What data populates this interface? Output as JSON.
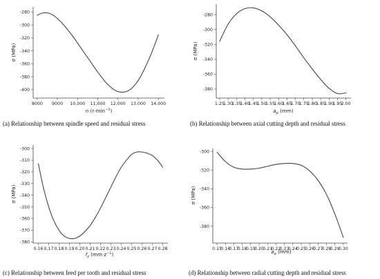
{
  "chart_data": [
    {
      "type": "line",
      "caption": "(a) Relationship between spindle speed  and residual stress",
      "xlabel_base": "n",
      "xlabel_unit": " (r·min",
      "xlabel_sup": "−1",
      "xlabel_close": ")",
      "ylabel": "σ (MPa)",
      "xlim": [
        7800,
        14300
      ],
      "ylim": [
        -413,
        -272
      ],
      "xticks": [
        8000,
        9000,
        10000,
        11000,
        12000,
        13000,
        14000
      ],
      "xtick_labels": [
        "8000",
        "9000",
        "10,000",
        "11,000",
        "12,000",
        "13,000",
        "14,000"
      ],
      "yticks": [
        -400,
        -380,
        -360,
        -340,
        -320,
        -300,
        -280
      ],
      "ytick_labels": [
        "-400",
        "-380",
        "-360",
        "-340",
        "-320",
        "-300",
        "-280"
      ],
      "series": [
        {
          "x": [
            8000,
            8200,
            8400,
            8600,
            8800,
            9000,
            9200,
            9400,
            9600,
            9800,
            10000,
            10200,
            10400,
            10600,
            10800,
            11000,
            11200,
            11400,
            11600,
            11800,
            12000,
            12200,
            12400,
            12600,
            12800,
            13000,
            13200,
            13400,
            13600,
            13800,
            14000
          ],
          "y": [
            -285,
            -282,
            -281,
            -282,
            -285,
            -290,
            -296,
            -303,
            -311,
            -319,
            -328,
            -337,
            -346,
            -355,
            -364,
            -373,
            -381,
            -389,
            -395,
            -400,
            -403,
            -404,
            -403,
            -400,
            -394,
            -386,
            -375,
            -362,
            -348,
            -332,
            -315
          ]
        }
      ]
    },
    {
      "type": "line",
      "caption": "(b) Relationship between axial cutting depth and residual stress",
      "xlabel_base": "a",
      "xlabel_sub": "p",
      "xlabel_unit": " (mm)",
      "ylabel": "σ (MPa)",
      "xlim": [
        1.23,
        2.03
      ],
      "ylim": [
        -392,
        -266
      ],
      "xticks": [
        1.25,
        1.3,
        1.35,
        1.4,
        1.45,
        1.5,
        1.55,
        1.6,
        1.65,
        1.7,
        1.75,
        1.8,
        1.85,
        1.9,
        1.95,
        2.0
      ],
      "xtick_labels": [
        "1.25",
        "1.30",
        "1.35",
        "1.40",
        "1.45",
        "1.50",
        "1.55",
        "1.60",
        "1.65",
        "1.70",
        "1.75",
        "1.80",
        "1.85",
        "1.90",
        "1.95",
        "2.00"
      ],
      "yticks": [
        -380,
        -360,
        -340,
        -320,
        -300,
        -280
      ],
      "ytick_labels": [
        "-380",
        "-360",
        "-340",
        "-320",
        "-300",
        "-280"
      ],
      "series": [
        {
          "x": [
            1.25,
            1.3,
            1.35,
            1.4,
            1.45,
            1.5,
            1.55,
            1.6,
            1.65,
            1.7,
            1.75,
            1.8,
            1.85,
            1.9,
            1.95,
            2.0
          ],
          "y": [
            -316,
            -293,
            -279,
            -272,
            -271,
            -275,
            -283,
            -294,
            -307,
            -322,
            -338,
            -353,
            -367,
            -379,
            -386,
            -385
          ]
        }
      ]
    },
    {
      "type": "line",
      "caption": "(c) Relationship between feed per tooth  and residual stress",
      "xlabel_base": "f",
      "xlabel_sub": "z",
      "xlabel_unit": " (mm·z",
      "xlabel_sup": "−1",
      "xlabel_close": ")",
      "ylabel": "σ (MPa)",
      "xlim": [
        0.155,
        0.285
      ],
      "ylim": [
        -381,
        -297
      ],
      "xticks": [
        0.16,
        0.17,
        0.18,
        0.19,
        0.2,
        0.21,
        0.22,
        0.23,
        0.24,
        0.25,
        0.26,
        0.27,
        0.28
      ],
      "xtick_labels": [
        "0.16",
        "0.17",
        "0.18",
        "0.19",
        "0.20",
        "0.21",
        "0.22",
        "0.23",
        "0.24",
        "0.25",
        "0.26",
        "0.27",
        "0.28"
      ],
      "yticks": [
        -380,
        -370,
        -360,
        -350,
        -340,
        -330,
        -320,
        -310,
        -300
      ],
      "ytick_labels": [
        "-380",
        "-370",
        "-360",
        "-350",
        "-340",
        "-330",
        "-320",
        "-310",
        "-300"
      ],
      "series": [
        {
          "x": [
            0.16,
            0.165,
            0.17,
            0.175,
            0.18,
            0.185,
            0.19,
            0.195,
            0.2,
            0.205,
            0.21,
            0.215,
            0.22,
            0.225,
            0.23,
            0.235,
            0.24,
            0.245,
            0.25,
            0.255,
            0.26,
            0.265,
            0.27,
            0.275,
            0.28
          ],
          "y": [
            -313,
            -334,
            -350,
            -362,
            -370,
            -375,
            -377,
            -377,
            -375,
            -371,
            -366,
            -359,
            -351,
            -342,
            -333,
            -324,
            -316,
            -310,
            -305,
            -303,
            -303,
            -304,
            -306,
            -310,
            -316
          ]
        }
      ]
    },
    {
      "type": "line",
      "caption": "(d) Relationship between radial cutting depth  and residual stress",
      "xlabel_base": "a",
      "xlabel_sub": "e",
      "xlabel_unit": " (mm)",
      "ylabel": "σ (MPa)",
      "xlim": [
        0.145,
        0.305
      ],
      "ylim": [
        -398,
        -297
      ],
      "xticks": [
        0.15,
        0.16,
        0.17,
        0.18,
        0.19,
        0.2,
        0.21,
        0.22,
        0.23,
        0.24,
        0.25,
        0.26,
        0.27,
        0.28,
        0.29,
        0.3
      ],
      "xtick_labels": [
        "0.15",
        "0.16",
        "0.17",
        "0.18",
        "0.19",
        "0.20",
        "0.21",
        "0.22",
        "0.23",
        "0.24",
        "0.25",
        "0.26",
        "0.27",
        "0.28",
        "0.29",
        "0.30"
      ],
      "yticks": [
        -380,
        -360,
        -340,
        -320,
        -300
      ],
      "ytick_labels": [
        "-380",
        "-360",
        "-340",
        "-320",
        "-300"
      ],
      "series": [
        {
          "x": [
            0.15,
            0.16,
            0.17,
            0.18,
            0.19,
            0.2,
            0.21,
            0.22,
            0.23,
            0.24,
            0.25,
            0.26,
            0.27,
            0.28,
            0.29,
            0.3
          ],
          "y": [
            -301,
            -311,
            -317,
            -319,
            -319,
            -318,
            -316,
            -314,
            -313,
            -313,
            -315,
            -321,
            -331,
            -346,
            -367,
            -392
          ]
        }
      ]
    }
  ]
}
